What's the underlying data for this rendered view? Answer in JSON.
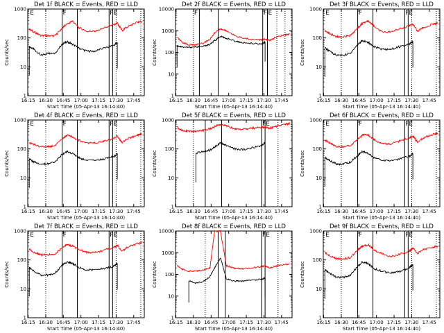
{
  "figure": {
    "background": "#ffffff",
    "axis_color": "#000000",
    "events_color": "#000000",
    "lld_color": "#ff0000"
  },
  "chart_data": [
    {
      "type": "line",
      "title": "Det 1f BLACK = Events, RED = LLD",
      "xlabel": "Start Time (05-Apr-13 16:14:40)",
      "ylabel": "Counts/sec",
      "xticks": [
        "16:15",
        "16:30",
        "16:45",
        "17:00",
        "17:15",
        "17:30",
        "17:45"
      ],
      "yticks": [
        "1",
        "10",
        "100",
        "1000"
      ],
      "ylim": [
        1,
        1000
      ],
      "ylog": true,
      "x": [
        "16:16",
        "16:20",
        "16:26",
        "16:32",
        "16:38",
        "16:44",
        "16:48",
        "16:53",
        "16:58",
        "17:05",
        "17:12",
        "17:20",
        "17:28",
        "17:31",
        "17:35",
        "17:40",
        "17:48",
        "17:52"
      ],
      "series": [
        {
          "name": "Events",
          "color": "#000000",
          "values": [
            50,
            40,
            25,
            30,
            30,
            60,
            75,
            60,
            45,
            35,
            35,
            45,
            55,
            70,
            null,
            null,
            null,
            null
          ]
        },
        {
          "name": "LLD",
          "color": "#ff0000",
          "values": [
            200,
            160,
            120,
            120,
            120,
            220,
            300,
            380,
            230,
            170,
            170,
            220,
            280,
            330,
            180,
            250,
            350,
            370
          ]
        }
      ],
      "vlines_solid": [
        "16:44",
        "16:57",
        "17:24",
        "17:27"
      ],
      "vlines_dotted": [
        "16:30",
        "17:30",
        "17:51"
      ],
      "flags": [
        {
          "text": "E",
          "x": "16:16"
        },
        {
          "text": "F",
          "x": "16:44"
        },
        {
          "text": "F",
          "x": "17:24"
        },
        {
          "text": "E",
          "x": "17:27"
        }
      ]
    },
    {
      "type": "line",
      "title": "Det 2f BLACK = Events, RED = LLD",
      "xlabel": "Start Time (05-Apr-13 16:14:40)",
      "ylabel": "Counts/sec",
      "xticks": [
        "16:15",
        "16:30",
        "16:45",
        "17:00",
        "17:15",
        "17:30",
        "17:45"
      ],
      "yticks": [
        "1",
        "10",
        "100",
        "1000",
        "10000"
      ],
      "ylim": [
        1,
        10000
      ],
      "ylog": true,
      "x": [
        "16:16",
        "16:20",
        "16:26",
        "16:32",
        "16:38",
        "16:44",
        "16:48",
        "16:53",
        "16:58",
        "17:05",
        "17:12",
        "17:20",
        "17:28",
        "17:31",
        "17:35",
        "17:40",
        "17:48",
        "17:52"
      ],
      "series": [
        {
          "name": "Events",
          "color": "#000000",
          "values": [
            200,
            180,
            170,
            180,
            190,
            230,
            350,
            550,
            450,
            330,
            280,
            260,
            240,
            300,
            null,
            null,
            null,
            null
          ]
        },
        {
          "name": "LLD",
          "color": "#ff0000",
          "values": [
            500,
            300,
            220,
            230,
            260,
            400,
            800,
            1200,
            1000,
            600,
            450,
            400,
            380,
            400,
            350,
            500,
            650,
            700
          ]
        }
      ],
      "vlines_solid": [
        "16:35",
        "16:51",
        "17:29",
        "17:33"
      ],
      "vlines_dotted": [
        "16:30",
        "17:41",
        "17:48"
      ],
      "flags": [
        {
          "text": "F",
          "x": "16:30"
        },
        {
          "text": "F",
          "x": "17:29"
        },
        {
          "text": "E",
          "x": "17:33"
        }
      ]
    },
    {
      "type": "line",
      "title": "Det 3f BLACK = Events, RED = LLD",
      "xlabel": "Start Time (05-Apr-13 16:14:40)",
      "ylabel": "Counts/sec",
      "xticks": [
        "16:15",
        "16:30",
        "16:45",
        "17:00",
        "17:15",
        "17:30",
        "17:45"
      ],
      "yticks": [
        "1",
        "10",
        "100",
        "1000"
      ],
      "ylim": [
        1,
        1000
      ],
      "ylog": true,
      "x": [
        "16:16",
        "16:20",
        "16:26",
        "16:32",
        "16:38",
        "16:44",
        "16:48",
        "16:53",
        "16:58",
        "17:05",
        "17:12",
        "17:20",
        "17:28",
        "17:31",
        "17:35",
        "17:40",
        "17:48",
        "17:52"
      ],
      "series": [
        {
          "name": "Events",
          "color": "#000000",
          "values": [
            45,
            35,
            25,
            25,
            30,
            60,
            80,
            70,
            50,
            40,
            40,
            50,
            60,
            75,
            null,
            null,
            null,
            null
          ]
        },
        {
          "name": "LLD",
          "color": "#ff0000",
          "values": [
            180,
            140,
            110,
            110,
            120,
            220,
            320,
            380,
            250,
            160,
            160,
            210,
            260,
            300,
            170,
            230,
            300,
            320
          ]
        }
      ],
      "vlines_solid": [
        "16:44",
        "16:57",
        "17:24",
        "17:27"
      ],
      "vlines_dotted": [
        "16:30",
        "17:30",
        "17:51"
      ],
      "flags": [
        {
          "text": "E",
          "x": "16:16"
        },
        {
          "text": "F",
          "x": "16:44"
        },
        {
          "text": "F",
          "x": "17:24"
        },
        {
          "text": "E",
          "x": "17:27"
        }
      ]
    },
    {
      "type": "line",
      "title": "Det 4f BLACK = Events, RED = LLD",
      "xlabel": "Start Time (05-Apr-13 16:14:40)",
      "ylabel": "Counts/sec",
      "xticks": [
        "16:15",
        "16:30",
        "16:45",
        "17:00",
        "17:15",
        "17:30",
        "17:45"
      ],
      "yticks": [
        "1",
        "10",
        "100",
        "1000"
      ],
      "ylim": [
        1,
        1000
      ],
      "ylog": true,
      "x": [
        "16:16",
        "16:20",
        "16:26",
        "16:32",
        "16:38",
        "16:44",
        "16:48",
        "16:53",
        "16:58",
        "17:05",
        "17:12",
        "17:20",
        "17:28",
        "17:31",
        "17:35",
        "17:40",
        "17:48",
        "17:52"
      ],
      "series": [
        {
          "name": "Events",
          "color": "#000000",
          "values": [
            45,
            35,
            30,
            30,
            35,
            65,
            80,
            70,
            50,
            40,
            40,
            45,
            55,
            70,
            null,
            null,
            null,
            null
          ]
        },
        {
          "name": "LLD",
          "color": "#ff0000",
          "values": [
            170,
            140,
            120,
            120,
            130,
            220,
            300,
            260,
            200,
            160,
            160,
            190,
            230,
            280,
            170,
            230,
            300,
            330
          ]
        }
      ],
      "vlines_solid": [
        "16:44",
        "16:57",
        "17:24",
        "17:27"
      ],
      "vlines_dotted": [
        "16:30",
        "17:30",
        "17:51"
      ],
      "flags": [
        {
          "text": "E",
          "x": "16:16"
        },
        {
          "text": "F",
          "x": "16:44"
        },
        {
          "text": "F",
          "x": "17:24"
        },
        {
          "text": "E",
          "x": "17:27"
        }
      ]
    },
    {
      "type": "line",
      "title": "Det 5f BLACK = Events, RED = LLD",
      "xlabel": "Start Time (05-Apr-13 16:14:40)",
      "ylabel": "Counts/sec",
      "xticks": [
        "16:15",
        "16:30",
        "16:45",
        "17:00",
        "17:15",
        "17:30",
        "17:45"
      ],
      "yticks": [
        "1",
        "10",
        "100",
        "1000"
      ],
      "ylim": [
        1,
        1000
      ],
      "ylog": true,
      "x": [
        "16:16",
        "16:20",
        "16:26",
        "16:32",
        "16:38",
        "16:44",
        "16:48",
        "16:53",
        "16:58",
        "17:05",
        "17:12",
        "17:20",
        "17:28",
        "17:31",
        "17:35",
        "17:40",
        "17:48",
        "17:52"
      ],
      "series": [
        {
          "name": "Events",
          "color": "#000000",
          "values": [
            null,
            null,
            null,
            70,
            80,
            90,
            120,
            160,
            130,
            100,
            95,
            110,
            130,
            160,
            null,
            null,
            null,
            null
          ]
        },
        {
          "name": "LLD",
          "color": "#ff0000",
          "values": [
            550,
            450,
            400,
            400,
            430,
            500,
            600,
            700,
            620,
            500,
            480,
            520,
            560,
            560,
            520,
            600,
            700,
            750
          ]
        }
      ],
      "vlines_solid": [
        "16:40",
        "16:54",
        "17:28",
        "17:31"
      ],
      "vlines_dotted": [
        "16:30",
        "17:42"
      ],
      "flags": [
        {
          "text": "F",
          "x": "17:28"
        },
        {
          "text": "E",
          "x": "17:31"
        }
      ]
    },
    {
      "type": "line",
      "title": "Det 6f BLACK = Events, RED = LLD",
      "xlabel": "Start Time (05-Apr-13 16:14:40)",
      "ylabel": "Counts/sec",
      "xticks": [
        "16:15",
        "16:30",
        "16:45",
        "17:00",
        "17:15",
        "17:30",
        "17:45"
      ],
      "yticks": [
        "1",
        "10",
        "100",
        "1000"
      ],
      "ylim": [
        1,
        1000
      ],
      "ylog": true,
      "x": [
        "16:16",
        "16:20",
        "16:26",
        "16:32",
        "16:38",
        "16:44",
        "16:48",
        "16:53",
        "16:58",
        "17:05",
        "17:12",
        "17:20",
        "17:28",
        "17:31",
        "17:35",
        "17:40",
        "17:48",
        "17:52"
      ],
      "series": [
        {
          "name": "Events",
          "color": "#000000",
          "values": [
            50,
            40,
            30,
            30,
            35,
            60,
            80,
            70,
            50,
            40,
            40,
            45,
            55,
            70,
            null,
            null,
            null,
            null
          ]
        },
        {
          "name": "LLD",
          "color": "#ff0000",
          "values": [
            200,
            160,
            120,
            120,
            130,
            220,
            300,
            300,
            210,
            150,
            150,
            190,
            230,
            280,
            170,
            240,
            320,
            350
          ]
        }
      ],
      "vlines_solid": [
        "16:44",
        "16:57",
        "17:24",
        "17:27"
      ],
      "vlines_dotted": [
        "16:30",
        "17:30",
        "17:51"
      ],
      "flags": [
        {
          "text": "E",
          "x": "16:16"
        },
        {
          "text": "F",
          "x": "16:44"
        },
        {
          "text": "F",
          "x": "17:24"
        },
        {
          "text": "E",
          "x": "17:27"
        }
      ]
    },
    {
      "type": "line",
      "title": "Det 7f BLACK = Events, RED = LLD",
      "xlabel": "Start Time (05-Apr-13 16:14:40)",
      "ylabel": "Counts/sec",
      "xticks": [
        "16:15",
        "16:30",
        "16:45",
        "17:00",
        "17:15",
        "17:30",
        "17:45"
      ],
      "yticks": [
        "1",
        "10",
        "100",
        "1000"
      ],
      "ylim": [
        1,
        1000
      ],
      "ylog": true,
      "x": [
        "16:16",
        "16:20",
        "16:26",
        "16:32",
        "16:38",
        "16:44",
        "16:48",
        "16:53",
        "16:58",
        "17:05",
        "17:12",
        "17:20",
        "17:28",
        "17:31",
        "17:35",
        "17:40",
        "17:48",
        "17:52"
      ],
      "series": [
        {
          "name": "Events",
          "color": "#000000",
          "values": [
            55,
            40,
            30,
            30,
            35,
            65,
            85,
            75,
            55,
            45,
            45,
            50,
            60,
            75,
            null,
            null,
            null,
            null
          ]
        },
        {
          "name": "LLD",
          "color": "#ff0000",
          "values": [
            230,
            180,
            150,
            150,
            160,
            260,
            340,
            300,
            230,
            180,
            180,
            220,
            270,
            320,
            200,
            280,
            360,
            400
          ]
        }
      ],
      "vlines_solid": [
        "16:44",
        "16:57",
        "17:24",
        "17:27"
      ],
      "vlines_dotted": [
        "16:30",
        "17:30",
        "17:51"
      ],
      "flags": [
        {
          "text": "E",
          "x": "16:16"
        },
        {
          "text": "F",
          "x": "16:44"
        },
        {
          "text": "F",
          "x": "17:24"
        },
        {
          "text": "E",
          "x": "17:27"
        }
      ]
    },
    {
      "type": "line",
      "title": "Det 8f BLACK = Events, RED = LLD",
      "xlabel": "Start Time (05-Apr-13 16:14:40)",
      "ylabel": "Counts/sec",
      "xticks": [
        "16:15",
        "16:30",
        "16:45",
        "17:00",
        "17:15",
        "17:30",
        "17:45"
      ],
      "yticks": [
        "1",
        "10",
        "100",
        "1000",
        "10000"
      ],
      "ylim": [
        1,
        10000
      ],
      "ylog": true,
      "x": [
        "16:16",
        "16:20",
        "16:26",
        "16:32",
        "16:38",
        "16:44",
        "16:48",
        "16:53",
        "16:58",
        "17:05",
        "17:12",
        "17:20",
        "17:28",
        "17:31",
        "17:35",
        "17:40",
        "17:48",
        "17:52"
      ],
      "series": [
        {
          "name": "Events",
          "color": "#000000",
          "values": [
            null,
            null,
            50,
            40,
            45,
            80,
            200,
            600,
            60,
            50,
            50,
            55,
            60,
            70,
            null,
            null,
            null,
            null
          ]
        },
        {
          "name": "LLD",
          "color": "#ff0000",
          "values": [
            250,
            180,
            140,
            140,
            160,
            200,
            10000,
            10000,
            250,
            190,
            180,
            200,
            230,
            240,
            200,
            240,
            280,
            300
          ]
        }
      ],
      "vlines_solid": [
        "16:51",
        "16:57",
        "17:28",
        "17:31"
      ],
      "vlines_dotted": [
        "16:40",
        "17:42"
      ],
      "flags": [
        {
          "text": "F",
          "x": "17:28"
        },
        {
          "text": "E",
          "x": "17:31"
        }
      ]
    },
    {
      "type": "line",
      "title": "Det 9f BLACK = Events, RED = LLD",
      "xlabel": "Start Time (05-Apr-13 16:14:40)",
      "ylabel": "Counts/sec",
      "xticks": [
        "16:15",
        "16:30",
        "16:45",
        "17:00",
        "17:15",
        "17:30",
        "17:45"
      ],
      "yticks": [
        "1",
        "10",
        "100",
        "1000"
      ],
      "ylim": [
        1,
        1000
      ],
      "ylog": true,
      "x": [
        "16:16",
        "16:20",
        "16:26",
        "16:32",
        "16:38",
        "16:44",
        "16:48",
        "16:53",
        "16:58",
        "17:05",
        "17:12",
        "17:20",
        "17:28",
        "17:31",
        "17:35",
        "17:40",
        "17:48",
        "17:52"
      ],
      "series": [
        {
          "name": "Events",
          "color": "#000000",
          "values": [
            45,
            35,
            25,
            25,
            30,
            60,
            85,
            75,
            50,
            40,
            35,
            40,
            55,
            70,
            null,
            null,
            null,
            null
          ]
        },
        {
          "name": "LLD",
          "color": "#ff0000",
          "values": [
            180,
            140,
            110,
            110,
            120,
            220,
            300,
            340,
            220,
            160,
            130,
            160,
            200,
            260,
            170,
            230,
            280,
            300
          ]
        }
      ],
      "vlines_solid": [
        "16:44",
        "16:57",
        "17:24",
        "17:27"
      ],
      "vlines_dotted": [
        "16:30",
        "17:30",
        "17:51"
      ],
      "flags": [
        {
          "text": "E",
          "x": "16:16"
        },
        {
          "text": "F",
          "x": "16:44"
        },
        {
          "text": "F",
          "x": "17:24"
        },
        {
          "text": "E",
          "x": "17:27"
        }
      ]
    }
  ]
}
